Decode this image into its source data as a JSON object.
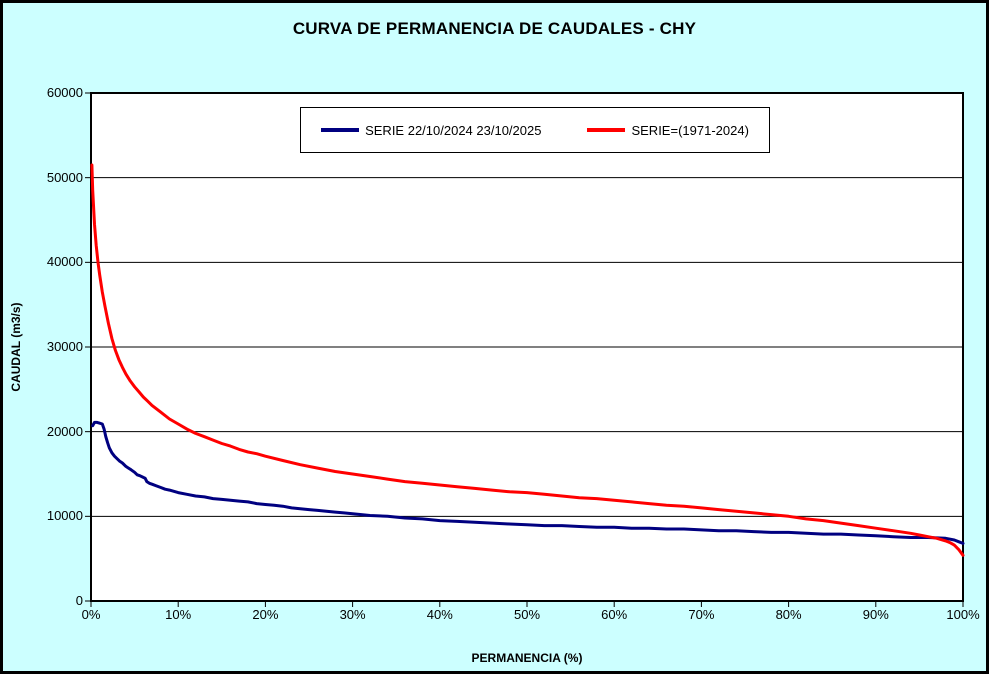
{
  "chart_data": {
    "type": "line",
    "title": "CURVA DE PERMANENCIA DE CAUDALES - CHY",
    "xlabel": "PERMANENCIA (%)",
    "ylabel": "CAUDAL (m3/s)",
    "xlim": [
      0,
      100
    ],
    "ylim": [
      0,
      60000
    ],
    "grid": "horizontal",
    "legend_position": "top-center",
    "x_tick_values": [
      0,
      10,
      20,
      30,
      40,
      50,
      60,
      70,
      80,
      90,
      100
    ],
    "x_tick_labels": [
      "0%",
      "10%",
      "20%",
      "30%",
      "40%",
      "50%",
      "60%",
      "70%",
      "80%",
      "90%",
      "100%"
    ],
    "y_tick_values": [
      0,
      10000,
      20000,
      30000,
      40000,
      50000,
      60000
    ],
    "y_tick_labels": [
      "0",
      "10000",
      "20000",
      "30000",
      "40000",
      "50000",
      "60000"
    ],
    "colors": {
      "background": "#CCFFFF",
      "plot_background": "#FFFFFF",
      "grid": "#000000",
      "series_blue": "#000080",
      "series_red": "#FF0000"
    },
    "series": [
      {
        "name": "SERIE 22/10/2024 23/10/2025",
        "color": "#000080",
        "points": [
          [
            0.2,
            20700
          ],
          [
            0.4,
            21100
          ],
          [
            0.7,
            21100
          ],
          [
            1.0,
            21000
          ],
          [
            1.3,
            20900
          ],
          [
            1.5,
            20300
          ],
          [
            1.7,
            19400
          ],
          [
            1.9,
            18700
          ],
          [
            2.1,
            18100
          ],
          [
            2.4,
            17500
          ],
          [
            2.7,
            17100
          ],
          [
            3.0,
            16800
          ],
          [
            3.3,
            16500
          ],
          [
            3.6,
            16300
          ],
          [
            4.0,
            15900
          ],
          [
            4.3,
            15700
          ],
          [
            4.6,
            15500
          ],
          [
            5.0,
            15200
          ],
          [
            5.3,
            14900
          ],
          [
            5.6,
            14800
          ],
          [
            6.0,
            14600
          ],
          [
            6.2,
            14500
          ],
          [
            6.4,
            14100
          ],
          [
            6.7,
            13900
          ],
          [
            7.0,
            13800
          ],
          [
            7.5,
            13600
          ],
          [
            8.0,
            13400
          ],
          [
            8.5,
            13200
          ],
          [
            9.0,
            13100
          ],
          [
            10,
            12800
          ],
          [
            11,
            12600
          ],
          [
            12,
            12400
          ],
          [
            13,
            12300
          ],
          [
            14,
            12100
          ],
          [
            15,
            12000
          ],
          [
            16,
            11900
          ],
          [
            17,
            11800
          ],
          [
            18,
            11700
          ],
          [
            19,
            11500
          ],
          [
            20,
            11400
          ],
          [
            21,
            11300
          ],
          [
            22,
            11200
          ],
          [
            23,
            11000
          ],
          [
            24,
            10900
          ],
          [
            25,
            10800
          ],
          [
            26,
            10700
          ],
          [
            27,
            10600
          ],
          [
            28,
            10500
          ],
          [
            29,
            10400
          ],
          [
            30,
            10300
          ],
          [
            32,
            10100
          ],
          [
            34,
            10000
          ],
          [
            36,
            9800
          ],
          [
            38,
            9700
          ],
          [
            40,
            9500
          ],
          [
            42,
            9400
          ],
          [
            44,
            9300
          ],
          [
            46,
            9200
          ],
          [
            48,
            9100
          ],
          [
            50,
            9000
          ],
          [
            52,
            8900
          ],
          [
            54,
            8900
          ],
          [
            56,
            8800
          ],
          [
            58,
            8700
          ],
          [
            60,
            8700
          ],
          [
            62,
            8600
          ],
          [
            64,
            8600
          ],
          [
            66,
            8500
          ],
          [
            68,
            8500
          ],
          [
            70,
            8400
          ],
          [
            72,
            8300
          ],
          [
            74,
            8300
          ],
          [
            76,
            8200
          ],
          [
            78,
            8100
          ],
          [
            80,
            8100
          ],
          [
            82,
            8000
          ],
          [
            84,
            7900
          ],
          [
            86,
            7900
          ],
          [
            88,
            7800
          ],
          [
            90,
            7700
          ],
          [
            92,
            7600
          ],
          [
            94,
            7500
          ],
          [
            96,
            7500
          ],
          [
            98,
            7400
          ],
          [
            99,
            7200
          ],
          [
            99.5,
            7000
          ],
          [
            100,
            6800
          ]
        ]
      },
      {
        "name": "SERIE=(1971-2024)",
        "color": "#FF0000",
        "points": [
          [
            0.1,
            51500
          ],
          [
            0.2,
            48500
          ],
          [
            0.4,
            44500
          ],
          [
            0.6,
            42000
          ],
          [
            0.8,
            40000
          ],
          [
            1.0,
            38500
          ],
          [
            1.3,
            36500
          ],
          [
            1.6,
            34800
          ],
          [
            2.0,
            32800
          ],
          [
            2.4,
            31000
          ],
          [
            2.8,
            29600
          ],
          [
            3.2,
            28500
          ],
          [
            3.6,
            27600
          ],
          [
            4.0,
            26800
          ],
          [
            4.5,
            26000
          ],
          [
            5.0,
            25300
          ],
          [
            5.5,
            24700
          ],
          [
            6.0,
            24100
          ],
          [
            6.5,
            23600
          ],
          [
            7.0,
            23100
          ],
          [
            7.5,
            22700
          ],
          [
            8.0,
            22300
          ],
          [
            9.0,
            21500
          ],
          [
            10,
            20900
          ],
          [
            11,
            20300
          ],
          [
            12,
            19800
          ],
          [
            13,
            19400
          ],
          [
            14,
            19000
          ],
          [
            15,
            18600
          ],
          [
            16,
            18300
          ],
          [
            17,
            17900
          ],
          [
            18,
            17600
          ],
          [
            19,
            17400
          ],
          [
            20,
            17100
          ],
          [
            22,
            16600
          ],
          [
            24,
            16100
          ],
          [
            26,
            15700
          ],
          [
            28,
            15300
          ],
          [
            30,
            15000
          ],
          [
            32,
            14700
          ],
          [
            34,
            14400
          ],
          [
            36,
            14100
          ],
          [
            38,
            13900
          ],
          [
            40,
            13700
          ],
          [
            42,
            13500
          ],
          [
            44,
            13300
          ],
          [
            46,
            13100
          ],
          [
            48,
            12900
          ],
          [
            50,
            12800
          ],
          [
            52,
            12600
          ],
          [
            54,
            12400
          ],
          [
            56,
            12200
          ],
          [
            58,
            12100
          ],
          [
            60,
            11900
          ],
          [
            62,
            11700
          ],
          [
            64,
            11500
          ],
          [
            66,
            11300
          ],
          [
            68,
            11200
          ],
          [
            70,
            11000
          ],
          [
            72,
            10800
          ],
          [
            74,
            10600
          ],
          [
            76,
            10400
          ],
          [
            78,
            10200
          ],
          [
            80,
            10000
          ],
          [
            82,
            9700
          ],
          [
            84,
            9500
          ],
          [
            86,
            9200
          ],
          [
            88,
            8900
          ],
          [
            90,
            8600
          ],
          [
            92,
            8300
          ],
          [
            94,
            8000
          ],
          [
            95,
            7800
          ],
          [
            96,
            7600
          ],
          [
            97,
            7400
          ],
          [
            98,
            7100
          ],
          [
            98.5,
            6900
          ],
          [
            99,
            6600
          ],
          [
            99.5,
            6100
          ],
          [
            100,
            5400
          ]
        ]
      }
    ]
  }
}
